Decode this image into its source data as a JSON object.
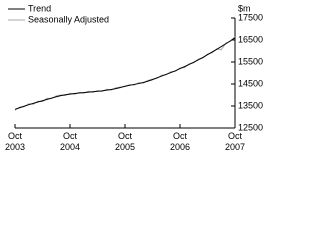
{
  "chart_data": {
    "type": "line",
    "y_label": "$m",
    "x": [
      "2003-10",
      "2003-11",
      "2003-12",
      "2004-01",
      "2004-02",
      "2004-03",
      "2004-04",
      "2004-05",
      "2004-06",
      "2004-07",
      "2004-08",
      "2004-09",
      "2004-10",
      "2004-11",
      "2004-12",
      "2005-01",
      "2005-02",
      "2005-03",
      "2005-04",
      "2005-05",
      "2005-06",
      "2005-07",
      "2005-08",
      "2005-09",
      "2005-10",
      "2005-11",
      "2005-12",
      "2006-01",
      "2006-02",
      "2006-03",
      "2006-04",
      "2006-05",
      "2006-06",
      "2006-07",
      "2006-08",
      "2006-09",
      "2006-10",
      "2006-11",
      "2006-12",
      "2007-01",
      "2007-02",
      "2007-03",
      "2007-04",
      "2007-05",
      "2007-06",
      "2007-07",
      "2007-08",
      "2007-09",
      "2007-10"
    ],
    "series": [
      {
        "name": "Trend",
        "color": "#000000",
        "values": [
          13350,
          13420,
          13490,
          13560,
          13620,
          13680,
          13740,
          13800,
          13860,
          13920,
          13970,
          14010,
          14040,
          14070,
          14090,
          14110,
          14130,
          14150,
          14170,
          14190,
          14220,
          14250,
          14290,
          14340,
          14400,
          14440,
          14480,
          14520,
          14570,
          14630,
          14700,
          14780,
          14860,
          14940,
          15020,
          15100,
          15200,
          15290,
          15390,
          15490,
          15600,
          15710,
          15830,
          15950,
          16070,
          16200,
          16330,
          16460,
          16600
        ]
      },
      {
        "name": "Seasonally Adjusted",
        "color": "#aaaaaa",
        "values": [
          13300,
          13450,
          13470,
          13600,
          13580,
          13720,
          13700,
          13850,
          13830,
          13960,
          14000,
          13980,
          14080,
          14030,
          14120,
          14080,
          14170,
          14120,
          14200,
          14160,
          14260,
          14220,
          14330,
          14360,
          14380,
          14470,
          14450,
          14560,
          14540,
          14660,
          14720,
          14760,
          14900,
          14920,
          15060,
          15080,
          15230,
          15250,
          15420,
          15460,
          15630,
          15680,
          15860,
          15920,
          16100,
          16050,
          16360,
          16440,
          16650
        ]
      }
    ],
    "ylim": [
      12500,
      17500
    ],
    "yticks": [
      12500,
      13500,
      14500,
      15500,
      16500,
      17500
    ],
    "xticks": [
      {
        "value": "2003-10",
        "label": "Oct 2003"
      },
      {
        "value": "2004-10",
        "label": "Oct 2004"
      },
      {
        "value": "2005-10",
        "label": "Oct 2005"
      },
      {
        "value": "2006-10",
        "label": "Oct 2006"
      },
      {
        "value": "2007-10",
        "label": "Oct 2007"
      }
    ],
    "legend": "top-left"
  }
}
